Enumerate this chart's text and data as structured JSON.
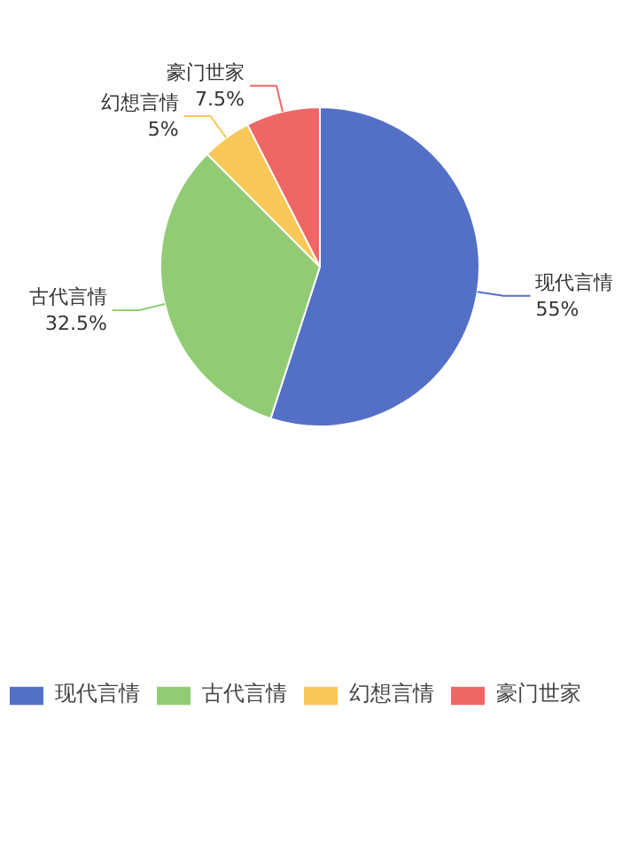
{
  "chart_data": {
    "type": "pie",
    "categories": [
      "现代言情",
      "古代言情",
      "幻想言情",
      "豪门世家"
    ],
    "values": [
      55,
      32.5,
      5,
      7.5
    ],
    "colors": [
      "#5470c6",
      "#91cc75",
      "#fac858",
      "#ee6666"
    ],
    "value_labels": [
      "55%",
      "32.5%",
      "5%",
      "7.5%"
    ],
    "legend": "bottom"
  }
}
